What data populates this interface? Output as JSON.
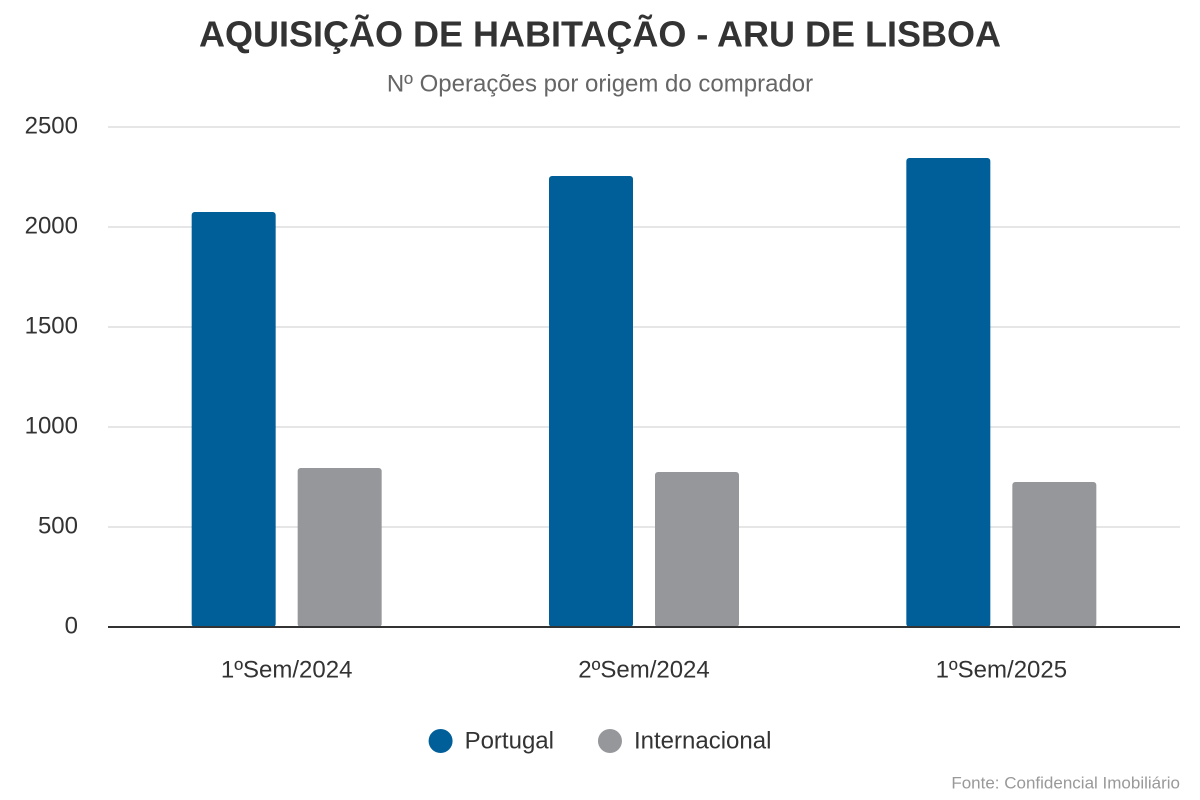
{
  "chart_data": {
    "type": "bar",
    "title": "AQUISIÇÃO DE HABITAÇÃO - ARU DE LISBOA",
    "subtitle": "Nº Operações por origem do comprador",
    "categories": [
      "1ºSem/2024",
      "2ºSem/2024",
      "1ºSem/2025"
    ],
    "series": [
      {
        "name": "Portugal",
        "color": "#005f99",
        "values": [
          2075,
          2255,
          2345
        ]
      },
      {
        "name": "Internacional",
        "color": "#96979b",
        "values": [
          795,
          775,
          725
        ]
      }
    ],
    "ylim": [
      0,
      2500
    ],
    "yticks": [
      0,
      500,
      1000,
      1500,
      2000,
      2500
    ],
    "grid": true,
    "legend": "bottom",
    "source": "Fonte: Confidencial Imobiliário"
  }
}
